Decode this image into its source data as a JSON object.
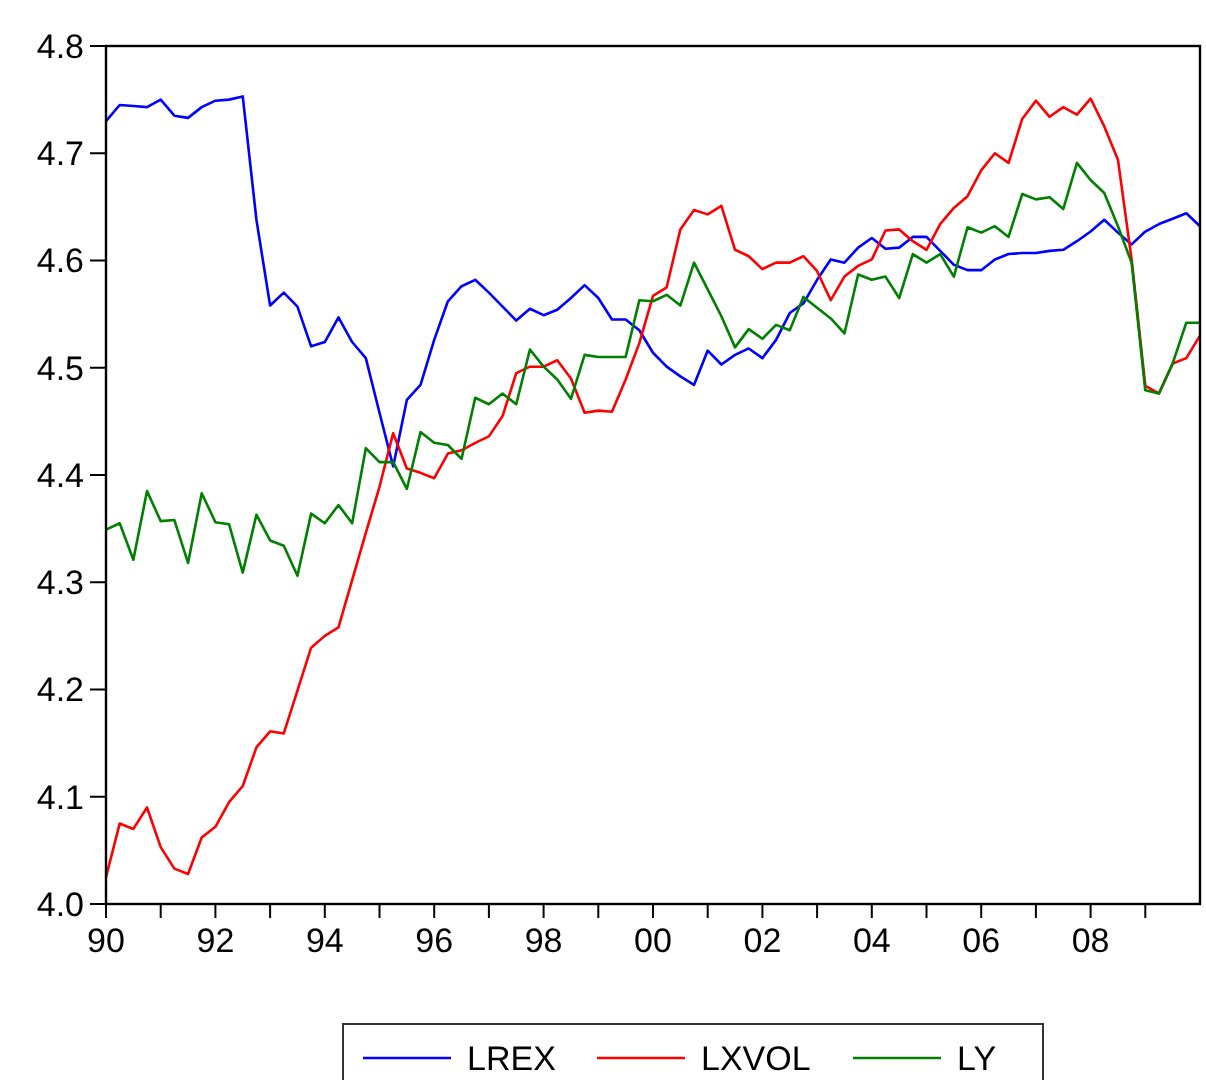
{
  "chart_data": {
    "type": "line",
    "x": [
      1990,
      1990.25,
      1990.5,
      1990.75,
      1991,
      1991.25,
      1991.5,
      1991.75,
      1992,
      1992.25,
      1992.5,
      1992.75,
      1993,
      1993.25,
      1993.5,
      1993.75,
      1994,
      1994.25,
      1994.5,
      1994.75,
      1995,
      1995.25,
      1995.5,
      1995.75,
      1996,
      1996.25,
      1996.5,
      1996.75,
      1997,
      1997.25,
      1997.5,
      1997.75,
      1998,
      1998.25,
      1998.5,
      1998.75,
      1999,
      1999.25,
      1999.5,
      1999.75,
      2000,
      2000.25,
      2000.5,
      2000.75,
      2001,
      2001.25,
      2001.5,
      2001.75,
      2002,
      2002.25,
      2002.5,
      2002.75,
      2003,
      2003.25,
      2003.5,
      2003.75,
      2004,
      2004.25,
      2004.5,
      2004.75,
      2005,
      2005.25,
      2005.5,
      2005.75,
      2006,
      2006.25,
      2006.5,
      2006.75,
      2007,
      2007.25,
      2007.5,
      2007.75,
      2008,
      2008.25,
      2008.5,
      2008.75,
      2009,
      2009.25,
      2009.5,
      2009.75,
      2010
    ],
    "series": [
      {
        "name": "LREX",
        "color": "#0000ff",
        "values": [
          4.73,
          4.745,
          4.744,
          4.743,
          4.75,
          4.735,
          4.733,
          4.743,
          4.749,
          4.75,
          4.753,
          4.638,
          4.558,
          4.57,
          4.557,
          4.52,
          4.524,
          4.547,
          4.524,
          4.509,
          4.458,
          4.408,
          4.47,
          4.484,
          4.526,
          4.562,
          4.576,
          4.582,
          4.57,
          4.557,
          4.544,
          4.555,
          4.549,
          4.554,
          4.565,
          4.577,
          4.565,
          4.545,
          4.545,
          4.535,
          4.514,
          4.501,
          4.492,
          4.484,
          4.516,
          4.503,
          4.512,
          4.518,
          4.509,
          4.526,
          4.551,
          4.56,
          4.582,
          4.601,
          4.598,
          4.612,
          4.621,
          4.611,
          4.612,
          4.622,
          4.622,
          4.609,
          4.596,
          4.591,
          4.591,
          4.601,
          4.606,
          4.607,
          4.607,
          4.609,
          4.61,
          4.618,
          4.627,
          4.638,
          4.626,
          4.615,
          4.627,
          4.634,
          4.639,
          4.644,
          4.632
        ]
      },
      {
        "name": "LXVOL",
        "color": "#ff0000",
        "values": [
          4.025,
          4.075,
          4.07,
          4.09,
          4.053,
          4.033,
          4.028,
          4.062,
          4.072,
          4.095,
          4.11,
          4.146,
          4.161,
          4.159,
          4.199,
          4.239,
          4.25,
          4.258,
          4.302,
          4.346,
          4.389,
          4.439,
          4.406,
          4.402,
          4.397,
          4.42,
          4.423,
          4.43,
          4.436,
          4.455,
          4.495,
          4.501,
          4.501,
          4.507,
          4.49,
          4.458,
          4.46,
          4.459,
          4.489,
          4.523,
          4.567,
          4.575,
          4.629,
          4.647,
          4.643,
          4.651,
          4.61,
          4.604,
          4.592,
          4.598,
          4.598,
          4.604,
          4.59,
          4.563,
          4.585,
          4.595,
          4.601,
          4.628,
          4.629,
          4.618,
          4.61,
          4.634,
          4.649,
          4.66,
          4.684,
          4.7,
          4.691,
          4.732,
          4.749,
          4.734,
          4.743,
          4.736,
          4.751,
          4.725,
          4.694,
          4.601,
          4.483,
          4.476,
          4.504,
          4.509,
          4.53
        ]
      },
      {
        "name": "LY",
        "color": "#008000",
        "values": [
          4.349,
          4.355,
          4.321,
          4.385,
          4.357,
          4.358,
          4.318,
          4.383,
          4.356,
          4.354,
          4.309,
          4.363,
          4.339,
          4.334,
          4.306,
          4.364,
          4.355,
          4.372,
          4.355,
          4.425,
          4.412,
          4.412,
          4.387,
          4.44,
          4.43,
          4.428,
          4.415,
          4.472,
          4.466,
          4.476,
          4.466,
          4.517,
          4.501,
          4.489,
          4.471,
          4.512,
          4.51,
          4.51,
          4.51,
          4.563,
          4.562,
          4.568,
          4.558,
          4.598,
          4.573,
          4.548,
          4.519,
          4.536,
          4.527,
          4.54,
          4.535,
          4.566,
          4.556,
          4.546,
          4.532,
          4.587,
          4.582,
          4.585,
          4.565,
          4.606,
          4.598,
          4.606,
          4.585,
          4.631,
          4.626,
          4.632,
          4.622,
          4.662,
          4.657,
          4.659,
          4.648,
          4.691,
          4.675,
          4.663,
          4.632,
          4.598,
          4.479,
          4.476,
          4.504,
          4.542,
          4.542
        ]
      }
    ],
    "xlim": [
      1990,
      2010
    ],
    "xticks": [
      {
        "value": 1990,
        "label": "90"
      },
      {
        "value": 1991,
        "label": null
      },
      {
        "value": 1992,
        "label": "92"
      },
      {
        "value": 1993,
        "label": null
      },
      {
        "value": 1994,
        "label": "94"
      },
      {
        "value": 1995,
        "label": null
      },
      {
        "value": 1996,
        "label": "96"
      },
      {
        "value": 1997,
        "label": null
      },
      {
        "value": 1998,
        "label": "98"
      },
      {
        "value": 1999,
        "label": null
      },
      {
        "value": 2000,
        "label": "00"
      },
      {
        "value": 2001,
        "label": null
      },
      {
        "value": 2002,
        "label": "02"
      },
      {
        "value": 2003,
        "label": null
      },
      {
        "value": 2004,
        "label": "04"
      },
      {
        "value": 2005,
        "label": null
      },
      {
        "value": 2006,
        "label": "06"
      },
      {
        "value": 2007,
        "label": null
      },
      {
        "value": 2008,
        "label": "08"
      },
      {
        "value": 2009,
        "label": null
      }
    ],
    "ylim": [
      4.0,
      4.8
    ],
    "yticks": [
      {
        "value": 4.0,
        "label": "4.0"
      },
      {
        "value": 4.1,
        "label": "4.1"
      },
      {
        "value": 4.2,
        "label": "4.2"
      },
      {
        "value": 4.3,
        "label": "4.3"
      },
      {
        "value": 4.4,
        "label": "4.4"
      },
      {
        "value": 4.5,
        "label": "4.5"
      },
      {
        "value": 4.6,
        "label": "4.6"
      },
      {
        "value": 4.7,
        "label": "4.7"
      },
      {
        "value": 4.8,
        "label": "4.8"
      }
    ],
    "legend": "bottom",
    "grid": false,
    "marker": "none",
    "line_style": "solid"
  }
}
